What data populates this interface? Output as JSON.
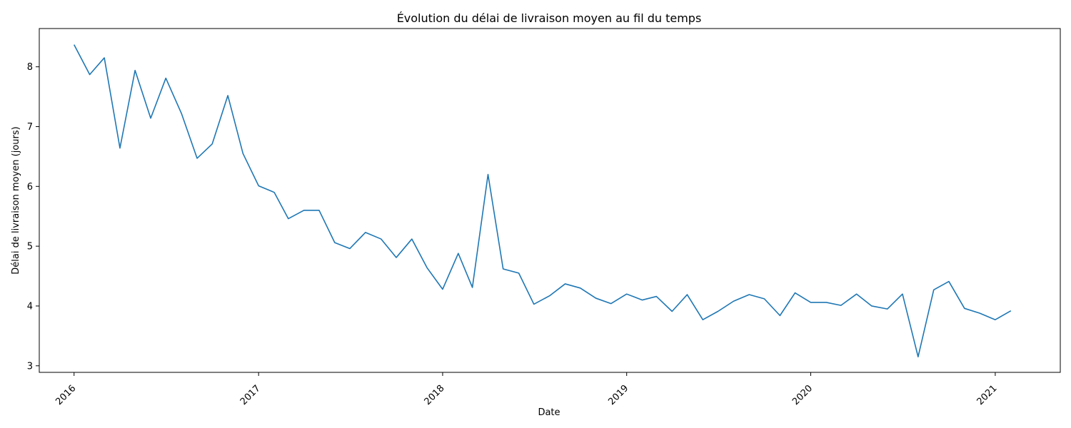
{
  "chart_data": {
    "type": "line",
    "title": "Évolution du délai de livraison moyen au fil du temps",
    "xlabel": "Date",
    "ylabel": "Délai de livraison moyen (jours)",
    "grid": false,
    "legend": "none",
    "xlim": [
      "2015-10-24",
      "2021-05-10"
    ],
    "ylim": [
      2.89,
      8.64
    ],
    "x_ticks": [
      "2016",
      "2017",
      "2018",
      "2019",
      "2020",
      "2021"
    ],
    "y_ticks": [
      3,
      4,
      5,
      6,
      7,
      8
    ],
    "series": [
      {
        "color": "#1f77b4",
        "x": [
          "2016-01-01",
          "2016-02-01",
          "2016-03-01",
          "2016-04-01",
          "2016-05-01",
          "2016-06-01",
          "2016-07-01",
          "2016-08-01",
          "2016-09-01",
          "2016-10-01",
          "2016-11-01",
          "2016-12-01",
          "2017-01-01",
          "2017-02-01",
          "2017-03-01",
          "2017-04-01",
          "2017-05-01",
          "2017-06-01",
          "2017-07-01",
          "2017-08-01",
          "2017-09-01",
          "2017-10-01",
          "2017-11-01",
          "2017-12-01",
          "2018-01-01",
          "2018-02-01",
          "2018-03-01",
          "2018-04-01",
          "2018-05-01",
          "2018-06-01",
          "2018-07-01",
          "2018-08-01",
          "2018-09-01",
          "2018-10-01",
          "2018-11-01",
          "2018-12-01",
          "2019-01-01",
          "2019-02-01",
          "2019-03-01",
          "2019-04-01",
          "2019-05-01",
          "2019-06-01",
          "2019-07-01",
          "2019-08-01",
          "2019-09-01",
          "2019-10-01",
          "2019-11-01",
          "2019-12-01",
          "2020-01-01",
          "2020-02-01",
          "2020-03-01",
          "2020-04-01",
          "2020-05-01",
          "2020-06-01",
          "2020-07-01",
          "2020-08-01",
          "2020-09-01",
          "2020-10-01",
          "2020-11-01",
          "2020-12-01",
          "2021-01-01",
          "2021-02-01"
        ],
        "values": [
          8.37,
          7.87,
          8.15,
          6.64,
          7.94,
          7.14,
          7.81,
          7.22,
          6.47,
          6.71,
          7.52,
          6.55,
          6.01,
          5.9,
          5.46,
          5.6,
          5.6,
          5.06,
          4.96,
          5.23,
          5.12,
          4.81,
          5.12,
          4.64,
          4.28,
          4.88,
          4.31,
          6.2,
          4.62,
          4.55,
          4.03,
          4.17,
          4.37,
          4.3,
          4.13,
          4.04,
          4.2,
          4.1,
          4.16,
          3.91,
          4.19,
          3.77,
          3.91,
          4.08,
          4.19,
          4.12,
          3.84,
          4.22,
          4.06,
          4.06,
          4.01,
          4.2,
          4.0,
          3.95,
          4.2,
          3.15,
          4.27,
          4.41,
          3.96,
          3.88,
          3.77,
          3.92
        ]
      }
    ]
  }
}
